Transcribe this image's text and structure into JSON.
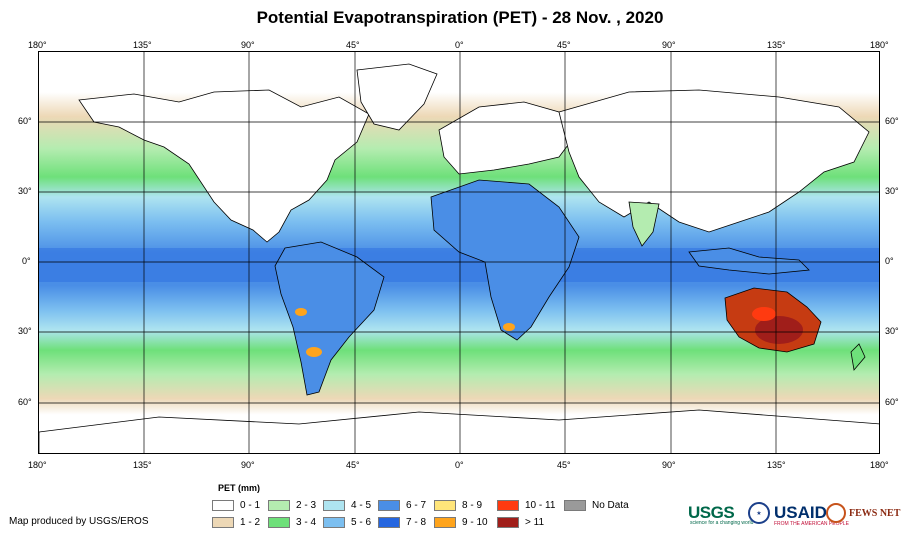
{
  "title": "Potential Evapotranspiration (PET) - 28 Nov. , 2020",
  "axes": {
    "longitude_ticks": [
      "180°",
      "135°",
      "90°",
      "45°",
      "0°",
      "45°",
      "90°",
      "135°",
      "180°"
    ],
    "latitude_ticks": [
      "60°",
      "30°",
      "0°",
      "30°",
      "60°"
    ]
  },
  "legend": {
    "title": "PET (mm)",
    "items": [
      {
        "label": "0 - 1",
        "color": "#ffffff"
      },
      {
        "label": "1 - 2",
        "color": "#edd8b6"
      },
      {
        "label": "2 - 3",
        "color": "#b4ecb0"
      },
      {
        "label": "3 - 4",
        "color": "#6ee07a"
      },
      {
        "label": "4 - 5",
        "color": "#aee4f0"
      },
      {
        "label": "5 - 6",
        "color": "#7cbff0"
      },
      {
        "label": "6 - 7",
        "color": "#4a8ee6"
      },
      {
        "label": "7 - 8",
        "color": "#2566e0"
      },
      {
        "label": "8 - 9",
        "color": "#ffe57a"
      },
      {
        "label": "9 - 10",
        "color": "#ffa41c"
      },
      {
        "label": "10 - 11",
        "color": "#ff3a10"
      },
      {
        "label": "> 11",
        "color": "#a01e1a"
      },
      {
        "label": "No Data",
        "color": "#9a9a9a"
      }
    ]
  },
  "credit": "Map produced by USGS/EROS",
  "logos": {
    "usgs": "USGS",
    "usgs_tagline": "science for a changing world",
    "usaid": "USAID",
    "usaid_tagline": "FROM THE AMERICAN PEOPLE",
    "fewsnet": "FEWS NET"
  }
}
